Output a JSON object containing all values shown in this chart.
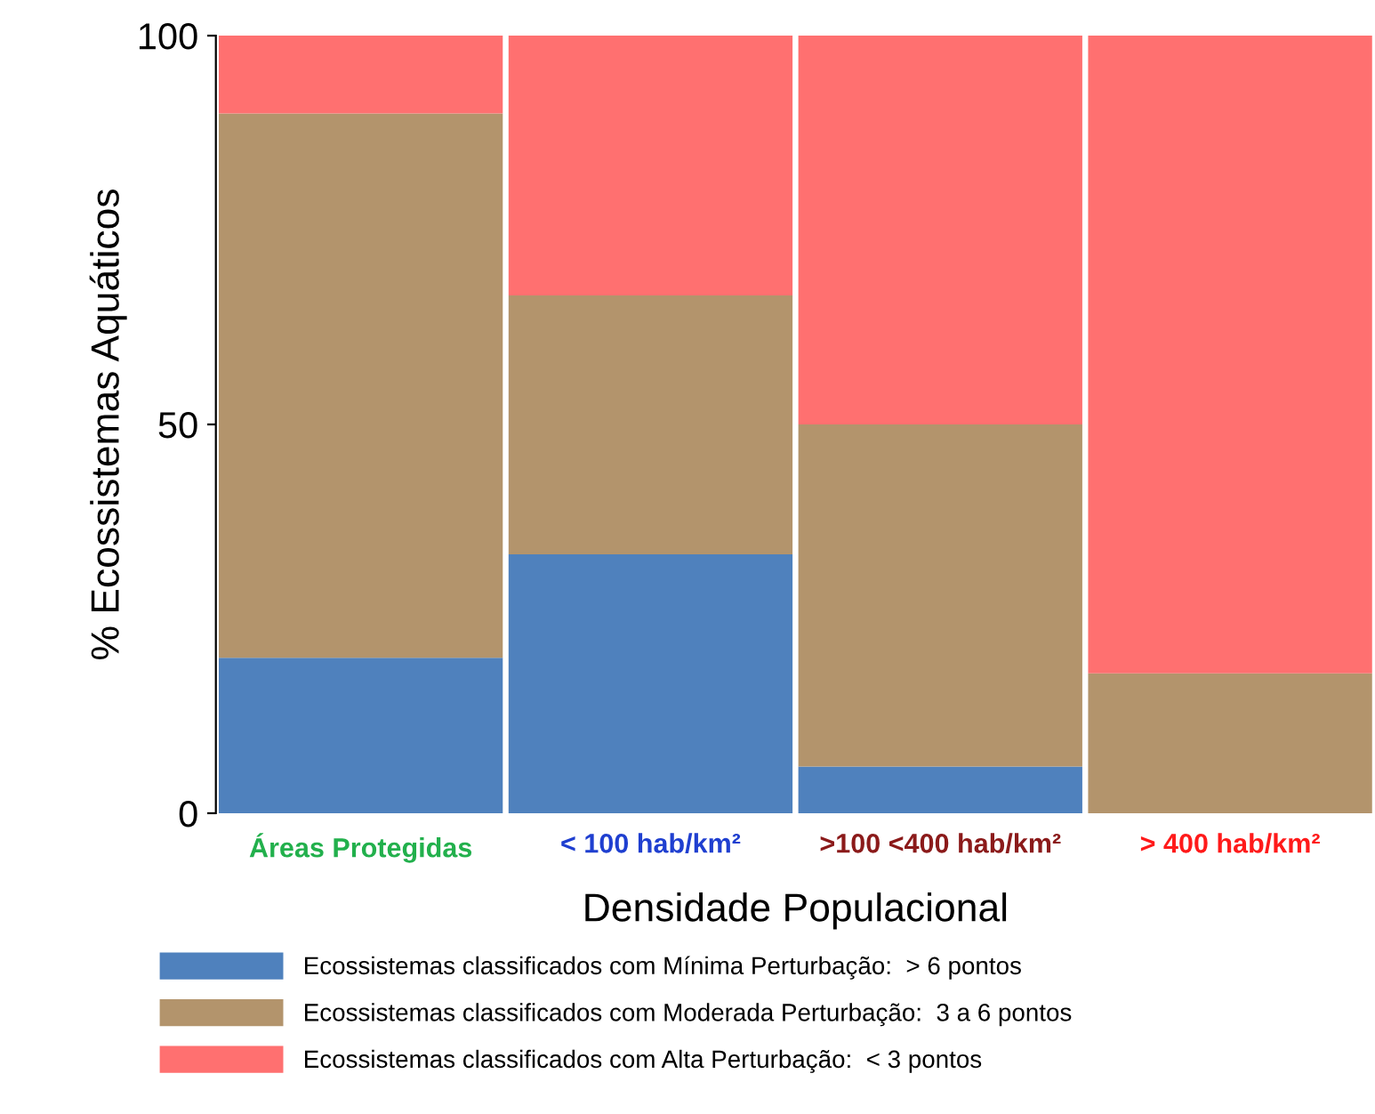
{
  "chart_data": {
    "type": "bar",
    "stacked": true,
    "categories": [
      "Áreas Protegidas",
      "< 100 hab/km²",
      ">100 <400 hab/km²",
      "> 400 hab/km²"
    ],
    "xlabel": "Densidade Populacional",
    "ylabel": "% Ecossistemas Aquáticos",
    "ylim": [
      0,
      100
    ],
    "yticks": [
      0,
      50,
      100
    ],
    "grid": false,
    "legend": "bottom",
    "series": [
      {
        "name": "Ecossistemas classificados com Mínima Perturbação:  > 6 pontos",
        "color": "#4f81bd",
        "values": [
          20,
          33.3,
          6,
          0
        ]
      },
      {
        "name": "Ecossistemas classificados com Moderada Perturbação:  3 a 6 pontos",
        "color": "#b3946c",
        "values": [
          70,
          33.3,
          44,
          18
        ]
      },
      {
        "name": "Ecossistemas classificados com Alta Perturbação:  < 3 pontos",
        "color": "#ff7070",
        "values": [
          10,
          33.4,
          50,
          82
        ]
      }
    ]
  }
}
